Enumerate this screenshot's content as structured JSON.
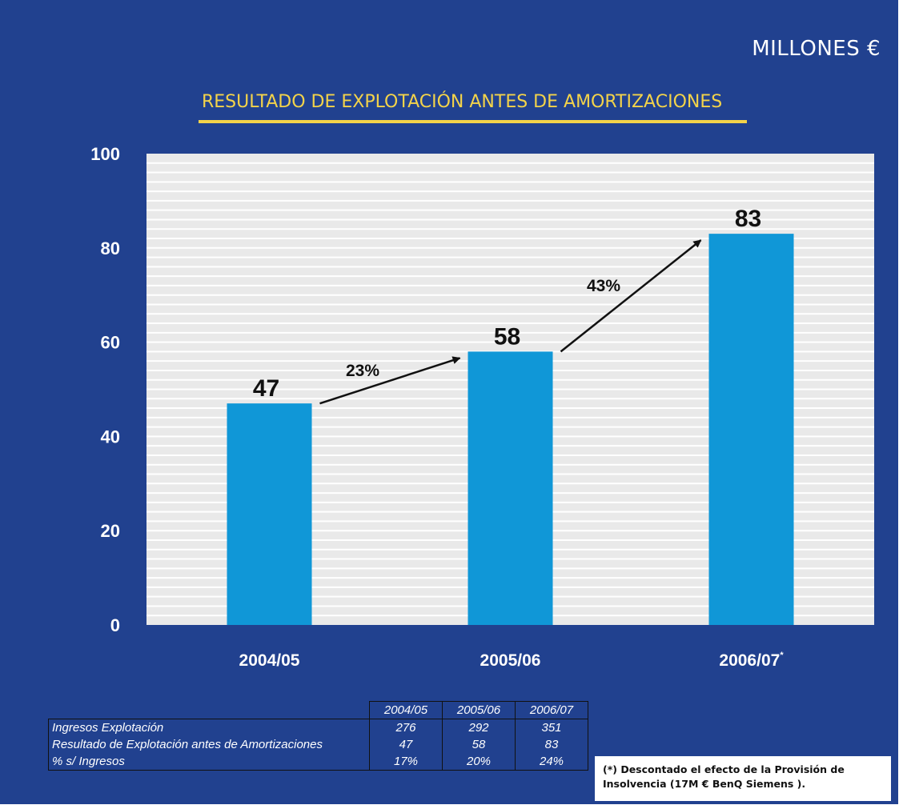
{
  "header": {
    "units": "MILLONES €",
    "title": "RESULTADO DE EXPLOTACIÓN ANTES DE AMORTIZACIONES"
  },
  "colors": {
    "background": "#21418f",
    "plot_area": "#e9e9e9",
    "bar": "#1097d7",
    "title": "#f3d34a"
  },
  "chart_data": {
    "type": "bar",
    "title": "RESULTADO DE EXPLOTACIÓN ANTES DE AMORTIZACIONES",
    "ylabel": "MILLONES €",
    "categories": [
      "2004/05",
      "2005/06",
      "2006/07"
    ],
    "category_suffix": [
      "",
      "",
      "*"
    ],
    "values": [
      47,
      58,
      83
    ],
    "value_labels": [
      "47",
      "58",
      "83"
    ],
    "ylim": [
      0,
      100
    ],
    "yticks": [
      "0",
      "20",
      "40",
      "60",
      "80",
      "100"
    ],
    "grid": true,
    "growth_annotations": [
      {
        "from": "2004/05",
        "to": "2005/06",
        "label": "23%"
      },
      {
        "from": "2005/06",
        "to": "2006/07",
        "label": "43%"
      }
    ]
  },
  "table": {
    "columns": [
      "2004/05",
      "2005/06",
      "2006/07"
    ],
    "rows": [
      {
        "label": "Ingresos Explotación",
        "values": [
          "276",
          "292",
          "351"
        ]
      },
      {
        "label": "Resultado de Explotación antes de Amortizaciones",
        "values": [
          "47",
          "58",
          "83"
        ]
      },
      {
        "label": "% s/ Ingresos",
        "values": [
          "17%",
          "20%",
          "24%"
        ]
      }
    ]
  },
  "footnote": {
    "line1": "(*) Descontado el efecto de la Provisión de",
    "line2": "Insolvencia (17M €  BenQ Siemens )."
  }
}
